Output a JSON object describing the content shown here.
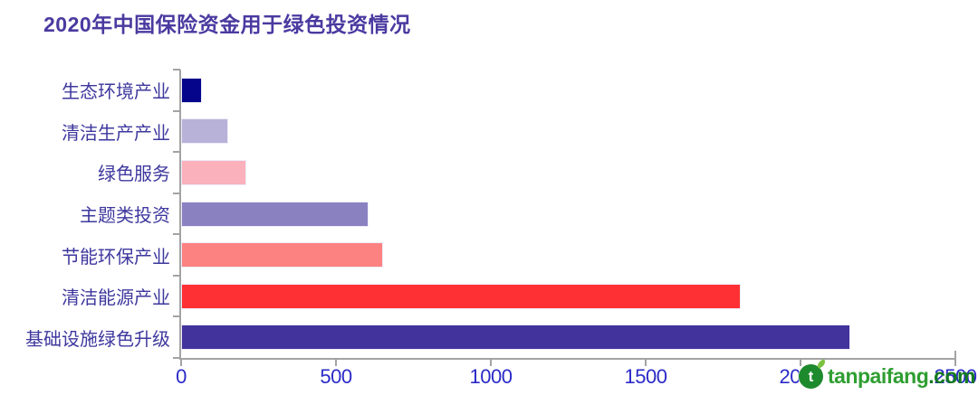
{
  "title": "2020年中国保险资金用于绿色投资情况",
  "chart_data": {
    "type": "bar",
    "orientation": "horizontal",
    "title": "2020年中国保险资金用于绿色投资情况",
    "categories": [
      "生态环境产业",
      "清洁生产产业",
      "绿色服务",
      "主题类投资",
      "节能环保产业",
      "清洁能源产业",
      "基础设施绿色升级"
    ],
    "values": [
      60,
      145,
      205,
      600,
      645,
      1800,
      2155
    ],
    "bar_colors": [
      "#04058a",
      "#b8b1d8",
      "#fab1bb",
      "#8a81c1",
      "#fc8181",
      "#fe3033",
      "#42339c"
    ],
    "xlim": [
      0,
      2500
    ],
    "x_ticks": [
      0,
      500,
      1000,
      1500,
      2000,
      2500
    ],
    "xlabel": "",
    "ylabel": "",
    "grid": false,
    "legend_position": "none"
  },
  "colors": {
    "title_text": "#4a3aa0",
    "category_text": "#3e389e",
    "tick_text": "#2a2ac8",
    "axis": "#a3a3a3",
    "background": "#ffffff",
    "watermark_green": "#2f9e31",
    "watermark_dark_green": "#157a1f"
  },
  "watermark": {
    "logo": "tanpaifang-logo-icon",
    "text_main": "tanpaifang",
    "text_suffix": ".com"
  }
}
